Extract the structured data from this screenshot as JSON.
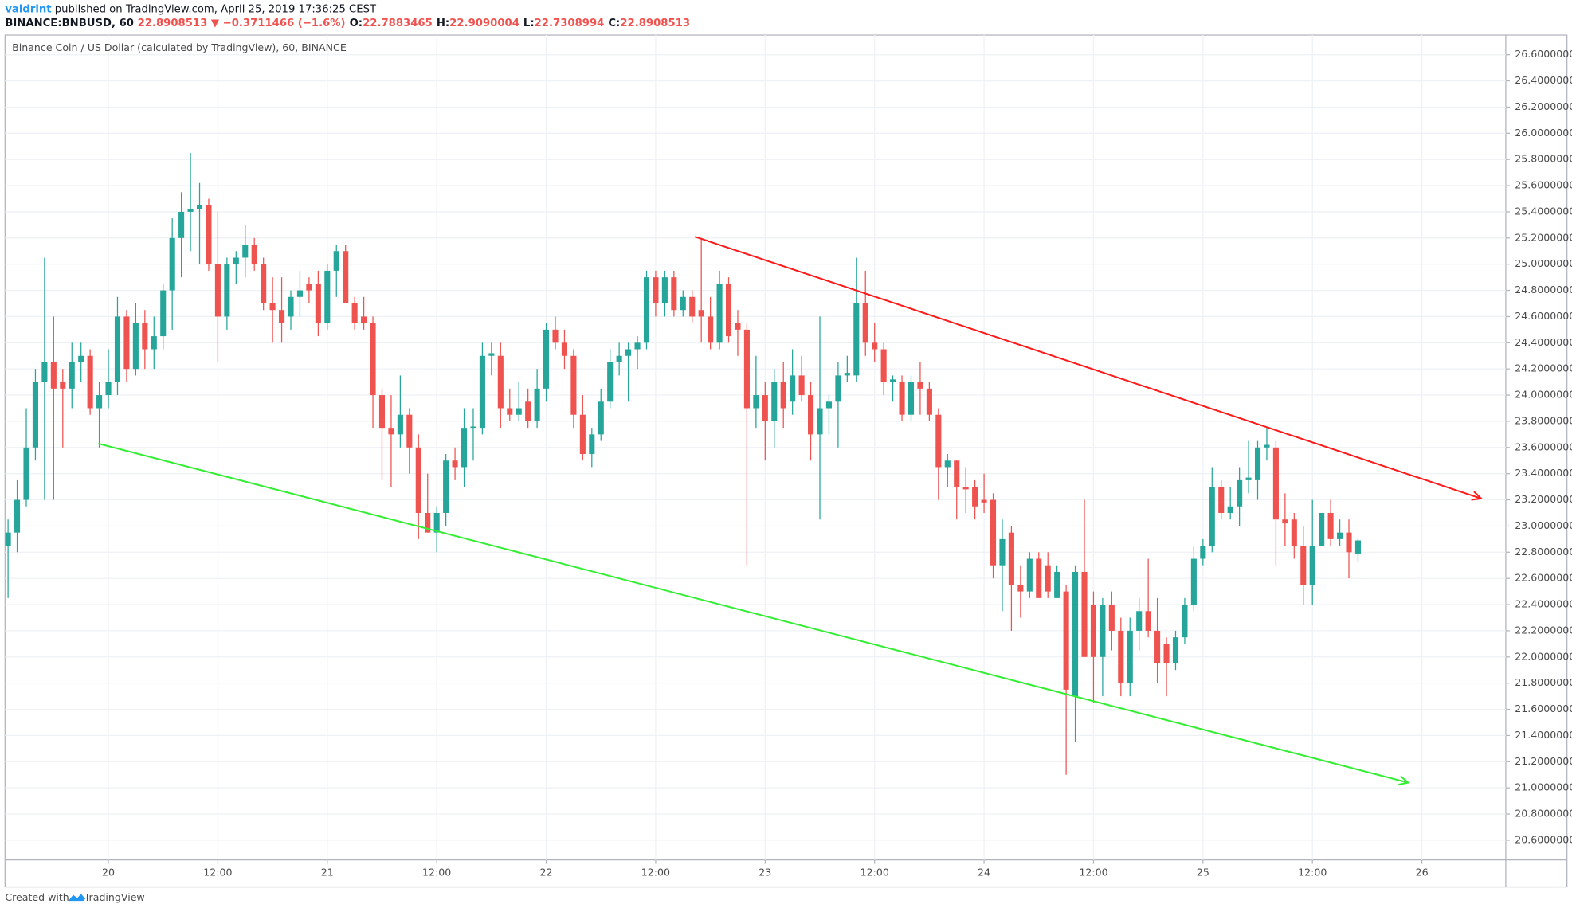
{
  "header": {
    "author": "valdrint",
    "published": "published on TradingView.com, April 25, 2019 17:36:25 CEST",
    "symbol": "BINANCE:BNBUSD, 60",
    "price": "22.8908513",
    "change": "▼ −0.3711466 (−1.6%)",
    "ohlc_legend": [
      {
        "label": "O:",
        "value": "22.7883465"
      },
      {
        "label": "H:",
        "value": "22.9090004"
      },
      {
        "label": "L:",
        "value": "22.7308994"
      },
      {
        "label": "C:",
        "value": "22.8908513"
      }
    ]
  },
  "footer": {
    "created": "Created with",
    "brand": "TradingView"
  },
  "chart_data": {
    "type": "candlestick",
    "title": "Binance Coin / US Dollar (calculated by TradingView), 60, BINANCE",
    "up_color": "#26a69a",
    "down_color": "#ef5350",
    "grid": true,
    "xlim": [
      -0.33,
      164.2
    ],
    "ylim": [
      20.45,
      26.75
    ],
    "xticks": [
      {
        "value": 11,
        "label": "20"
      },
      {
        "value": 23,
        "label": "12:00"
      },
      {
        "value": 35,
        "label": "21"
      },
      {
        "value": 47,
        "label": "12:00"
      },
      {
        "value": 59,
        "label": "22"
      },
      {
        "value": 71,
        "label": "12:00"
      },
      {
        "value": 83,
        "label": "23"
      },
      {
        "value": 95,
        "label": "12:00"
      },
      {
        "value": 107,
        "label": "24"
      },
      {
        "value": 119,
        "label": "12:00"
      },
      {
        "value": 131,
        "label": "25"
      },
      {
        "value": 143,
        "label": "12:00"
      },
      {
        "value": 155,
        "label": "26"
      }
    ],
    "yticks": [
      {
        "value": 20.6,
        "label": "20.6000000"
      },
      {
        "value": 20.8,
        "label": "20.8000000"
      },
      {
        "value": 21.0,
        "label": "21.0000000"
      },
      {
        "value": 21.2,
        "label": "21.2000000"
      },
      {
        "value": 21.4,
        "label": "21.4000000"
      },
      {
        "value": 21.6,
        "label": "21.6000000"
      },
      {
        "value": 21.8,
        "label": "21.8000000"
      },
      {
        "value": 22.0,
        "label": "22.0000000"
      },
      {
        "value": 22.2,
        "label": "22.2000000"
      },
      {
        "value": 22.4,
        "label": "22.4000000"
      },
      {
        "value": 22.6,
        "label": "22.6000000"
      },
      {
        "value": 22.8,
        "label": "22.8000000"
      },
      {
        "value": 23.0,
        "label": "23.0000000"
      },
      {
        "value": 23.2,
        "label": "23.2000000"
      },
      {
        "value": 23.4,
        "label": "23.4000000"
      },
      {
        "value": 23.6,
        "label": "23.6000000"
      },
      {
        "value": 23.8,
        "label": "23.8000000"
      },
      {
        "value": 24.0,
        "label": "24.0000000"
      },
      {
        "value": 24.2,
        "label": "24.2000000"
      },
      {
        "value": 24.4,
        "label": "24.4000000"
      },
      {
        "value": 24.6,
        "label": "24.6000000"
      },
      {
        "value": 24.8,
        "label": "24.8000000"
      },
      {
        "value": 25.0,
        "label": "25.0000000"
      },
      {
        "value": 25.2,
        "label": "25.2000000"
      },
      {
        "value": 25.4,
        "label": "25.4000000"
      },
      {
        "value": 25.6,
        "label": "25.6000000"
      },
      {
        "value": 25.8,
        "label": "25.8000000"
      },
      {
        "value": 26.0,
        "label": "26.0000000"
      },
      {
        "value": 26.2,
        "label": "26.2000000"
      },
      {
        "value": 26.4,
        "label": "26.4000000"
      },
      {
        "value": 26.6,
        "label": "26.6000000"
      }
    ],
    "trendlines": [
      {
        "color": "#ff1a1a",
        "points": [
          [
            75.3,
            25.21
          ],
          [
            161.5,
            23.21
          ]
        ]
      },
      {
        "color": "#33ee33",
        "points": [
          [
            9.9,
            23.63
          ],
          [
            153.5,
            21.04
          ]
        ]
      }
    ],
    "ohlc": [
      [
        22.85,
        23.05,
        22.45,
        22.95
      ],
      [
        22.95,
        23.35,
        22.8,
        23.2
      ],
      [
        23.2,
        23.9,
        23.15,
        23.6
      ],
      [
        23.6,
        24.2,
        23.5,
        24.1
      ],
      [
        24.1,
        25.05,
        23.2,
        24.25
      ],
      [
        24.25,
        24.6,
        23.2,
        24.05
      ],
      [
        24.1,
        24.2,
        23.6,
        24.05
      ],
      [
        24.05,
        24.4,
        23.9,
        24.25
      ],
      [
        24.25,
        24.4,
        24.1,
        24.3
      ],
      [
        24.3,
        24.35,
        23.85,
        23.9
      ],
      [
        23.9,
        24.1,
        23.6,
        24.0
      ],
      [
        24.0,
        24.35,
        23.9,
        24.1
      ],
      [
        24.1,
        24.75,
        24.0,
        24.6
      ],
      [
        24.6,
        24.65,
        24.1,
        24.2
      ],
      [
        24.2,
        24.7,
        24.15,
        24.55
      ],
      [
        24.55,
        24.65,
        24.2,
        24.35
      ],
      [
        24.35,
        24.6,
        24.2,
        24.45
      ],
      [
        24.45,
        24.85,
        24.35,
        24.8
      ],
      [
        24.8,
        25.35,
        24.5,
        25.2
      ],
      [
        25.2,
        25.55,
        24.9,
        25.4
      ],
      [
        25.4,
        25.85,
        25.1,
        25.42
      ],
      [
        25.42,
        25.62,
        25.0,
        25.45
      ],
      [
        25.45,
        25.5,
        24.95,
        25.0
      ],
      [
        25.0,
        25.4,
        24.25,
        24.6
      ],
      [
        24.6,
        25.05,
        24.5,
        25.0
      ],
      [
        25.0,
        25.1,
        24.85,
        25.05
      ],
      [
        25.05,
        25.3,
        24.9,
        25.15
      ],
      [
        25.15,
        25.2,
        24.95,
        25.0
      ],
      [
        25.0,
        25.05,
        24.65,
        24.7
      ],
      [
        24.7,
        24.9,
        24.4,
        24.65
      ],
      [
        24.65,
        24.9,
        24.4,
        24.55
      ],
      [
        24.6,
        24.8,
        24.5,
        24.75
      ],
      [
        24.75,
        24.95,
        24.6,
        24.8
      ],
      [
        24.85,
        24.9,
        24.7,
        24.8
      ],
      [
        24.85,
        24.95,
        24.45,
        24.55
      ],
      [
        24.55,
        25.0,
        24.5,
        24.95
      ],
      [
        24.95,
        25.15,
        24.75,
        25.1
      ],
      [
        25.1,
        25.15,
        24.7,
        24.7
      ],
      [
        24.7,
        24.75,
        24.5,
        24.55
      ],
      [
        24.6,
        24.75,
        24.5,
        24.55
      ],
      [
        24.55,
        24.6,
        23.75,
        24.0
      ],
      [
        24.0,
        24.05,
        23.35,
        23.75
      ],
      [
        23.75,
        24.0,
        23.3,
        23.7
      ],
      [
        23.7,
        24.15,
        23.6,
        23.85
      ],
      [
        23.85,
        23.9,
        23.4,
        23.6
      ],
      [
        23.6,
        23.7,
        22.9,
        23.1
      ],
      [
        23.1,
        23.4,
        22.95,
        22.95
      ],
      [
        22.95,
        23.15,
        22.8,
        23.1
      ],
      [
        23.1,
        23.55,
        23.0,
        23.5
      ],
      [
        23.5,
        23.6,
        23.35,
        23.45
      ],
      [
        23.45,
        23.9,
        23.3,
        23.75
      ],
      [
        23.75,
        23.9,
        23.5,
        23.76
      ],
      [
        23.75,
        24.4,
        23.7,
        24.3
      ],
      [
        24.3,
        24.4,
        24.15,
        24.32
      ],
      [
        24.3,
        24.4,
        23.75,
        23.9
      ],
      [
        23.9,
        24.05,
        23.8,
        23.85
      ],
      [
        23.85,
        24.1,
        23.8,
        23.9
      ],
      [
        23.95,
        24.05,
        23.75,
        23.8
      ],
      [
        23.8,
        24.2,
        23.75,
        24.05
      ],
      [
        24.05,
        24.55,
        23.95,
        24.5
      ],
      [
        24.5,
        24.6,
        24.35,
        24.4
      ],
      [
        24.4,
        24.5,
        24.2,
        24.3
      ],
      [
        24.3,
        24.35,
        23.75,
        23.85
      ],
      [
        23.85,
        24.0,
        23.5,
        23.55
      ],
      [
        23.55,
        23.75,
        23.45,
        23.7
      ],
      [
        23.7,
        24.05,
        23.65,
        23.95
      ],
      [
        23.95,
        24.35,
        23.9,
        24.25
      ],
      [
        24.25,
        24.4,
        24.15,
        24.3
      ],
      [
        24.3,
        24.4,
        23.95,
        24.35
      ],
      [
        24.35,
        24.45,
        24.2,
        24.4
      ],
      [
        24.4,
        24.95,
        24.35,
        24.9
      ],
      [
        24.9,
        24.95,
        24.6,
        24.7
      ],
      [
        24.7,
        24.95,
        24.6,
        24.9
      ],
      [
        24.9,
        24.95,
        24.6,
        24.65
      ],
      [
        24.65,
        24.8,
        24.6,
        24.75
      ],
      [
        24.75,
        24.8,
        24.55,
        24.6
      ],
      [
        24.65,
        25.2,
        24.4,
        24.6
      ],
      [
        24.6,
        24.75,
        24.35,
        24.4
      ],
      [
        24.4,
        24.95,
        24.35,
        24.85
      ],
      [
        24.85,
        24.9,
        24.4,
        24.45
      ],
      [
        24.55,
        24.65,
        24.3,
        24.5
      ],
      [
        24.5,
        24.55,
        22.7,
        23.9
      ],
      [
        23.9,
        24.3,
        23.75,
        24.0
      ],
      [
        24.0,
        24.1,
        23.5,
        23.8
      ],
      [
        23.8,
        24.2,
        23.6,
        24.1
      ],
      [
        24.1,
        24.25,
        23.75,
        23.9
      ],
      [
        23.95,
        24.35,
        23.85,
        24.15
      ],
      [
        24.15,
        24.3,
        23.95,
        24.0
      ],
      [
        24.0,
        24.1,
        23.5,
        23.7
      ],
      [
        23.7,
        24.6,
        23.05,
        23.9
      ],
      [
        23.9,
        24.0,
        23.7,
        23.95
      ],
      [
        23.95,
        24.25,
        23.6,
        24.15
      ],
      [
        24.15,
        24.3,
        24.1,
        24.17
      ],
      [
        24.15,
        25.05,
        24.1,
        24.7
      ],
      [
        24.7,
        24.95,
        24.3,
        24.4
      ],
      [
        24.4,
        24.55,
        24.25,
        24.35
      ],
      [
        24.35,
        24.4,
        24.0,
        24.1
      ],
      [
        24.1,
        24.15,
        23.95,
        24.12
      ],
      [
        24.1,
        24.15,
        23.8,
        23.85
      ],
      [
        23.85,
        24.15,
        23.8,
        24.1
      ],
      [
        24.1,
        24.25,
        23.85,
        24.05
      ],
      [
        24.05,
        24.1,
        23.8,
        23.85
      ],
      [
        23.85,
        23.9,
        23.2,
        23.45
      ],
      [
        23.45,
        23.55,
        23.3,
        23.5
      ],
      [
        23.5,
        23.5,
        23.05,
        23.3
      ],
      [
        23.3,
        23.45,
        23.1,
        23.28
      ],
      [
        23.3,
        23.35,
        23.05,
        23.15
      ],
      [
        23.2,
        23.4,
        23.1,
        23.18
      ],
      [
        23.2,
        23.25,
        22.6,
        22.7
      ],
      [
        22.7,
        23.05,
        22.35,
        22.9
      ],
      [
        22.95,
        23.0,
        22.2,
        22.55
      ],
      [
        22.55,
        22.7,
        22.3,
        22.5
      ],
      [
        22.5,
        22.8,
        22.45,
        22.75
      ],
      [
        22.75,
        22.8,
        22.45,
        22.45
      ],
      [
        22.7,
        22.8,
        22.45,
        22.5
      ],
      [
        22.45,
        22.7,
        22.45,
        22.65
      ],
      [
        22.5,
        22.55,
        21.1,
        21.75
      ],
      [
        21.7,
        22.7,
        21.35,
        22.65
      ],
      [
        22.65,
        23.2,
        22.0,
        22.0
      ],
      [
        22.4,
        22.5,
        21.65,
        22.0
      ],
      [
        22.0,
        22.45,
        21.7,
        22.4
      ],
      [
        22.4,
        22.5,
        22.05,
        22.2
      ],
      [
        22.2,
        22.3,
        21.7,
        21.8
      ],
      [
        21.8,
        22.3,
        21.7,
        22.2
      ],
      [
        22.2,
        22.45,
        22.05,
        22.35
      ],
      [
        22.35,
        22.75,
        22.15,
        22.2
      ],
      [
        22.2,
        22.45,
        21.8,
        21.95
      ],
      [
        22.1,
        22.15,
        21.7,
        21.95
      ],
      [
        21.95,
        22.2,
        21.9,
        22.15
      ],
      [
        22.15,
        22.45,
        22.1,
        22.4
      ],
      [
        22.4,
        22.85,
        22.35,
        22.75
      ],
      [
        22.75,
        22.9,
        22.7,
        22.85
      ],
      [
        22.85,
        23.45,
        22.8,
        23.3
      ],
      [
        23.3,
        23.35,
        23.05,
        23.1
      ],
      [
        23.1,
        23.3,
        23.05,
        23.15
      ],
      [
        23.15,
        23.45,
        23.0,
        23.35
      ],
      [
        23.35,
        23.65,
        23.25,
        23.37
      ],
      [
        23.35,
        23.65,
        23.2,
        23.6
      ],
      [
        23.6,
        23.75,
        23.5,
        23.62
      ],
      [
        23.6,
        23.65,
        22.7,
        23.05
      ],
      [
        23.05,
        23.25,
        22.85,
        23.02
      ],
      [
        23.05,
        23.1,
        22.75,
        22.85
      ],
      [
        22.85,
        23.0,
        22.4,
        22.55
      ],
      [
        22.55,
        23.2,
        22.4,
        22.85
      ],
      [
        22.85,
        23.1,
        22.85,
        23.1
      ],
      [
        23.1,
        23.2,
        22.85,
        22.9
      ],
      [
        22.9,
        23.05,
        22.85,
        22.95
      ],
      [
        22.95,
        23.05,
        22.6,
        22.8
      ],
      [
        22.79,
        22.91,
        22.73,
        22.89
      ]
    ]
  }
}
